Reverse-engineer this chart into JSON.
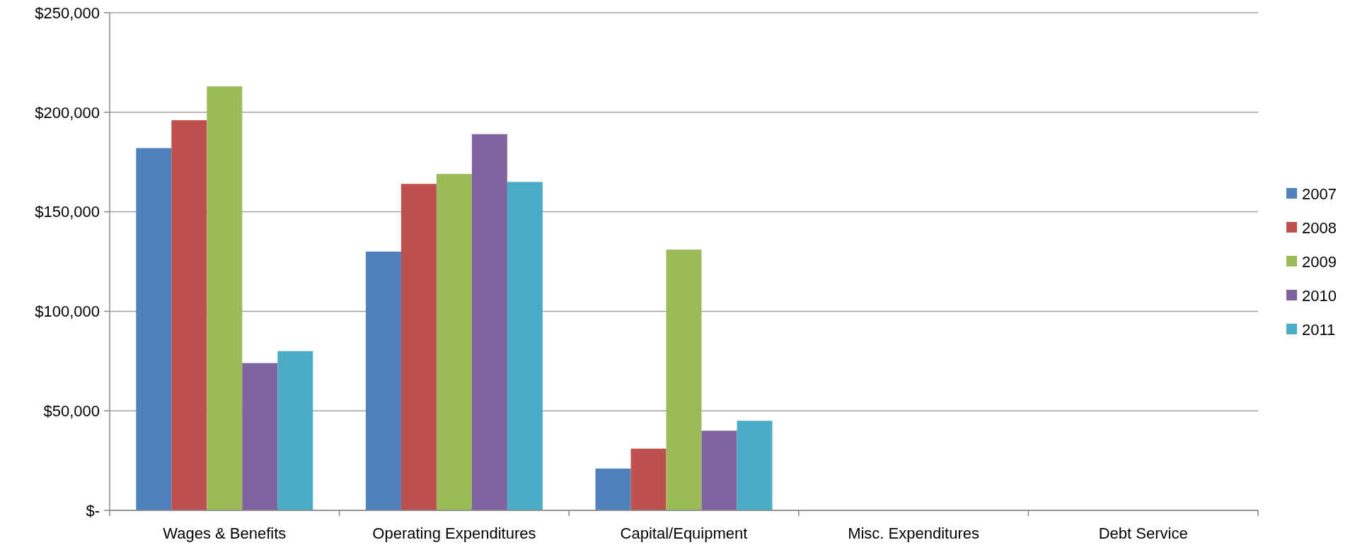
{
  "chart_data": {
    "type": "bar",
    "categories": [
      "Wages & Benefits",
      "Operating Expenditures",
      "Capital/Equipment",
      "Misc. Expenditures",
      "Debt Service"
    ],
    "series": [
      {
        "name": "2007",
        "color": "#4f81bd",
        "values": [
          182000,
          130000,
          21000,
          0,
          0
        ]
      },
      {
        "name": "2008",
        "color": "#c0504d",
        "values": [
          196000,
          164000,
          31000,
          0,
          0
        ]
      },
      {
        "name": "2009",
        "color": "#9bbb59",
        "values": [
          213000,
          169000,
          131000,
          0,
          0
        ]
      },
      {
        "name": "2010",
        "color": "#8064a2",
        "values": [
          74000,
          189000,
          40000,
          0,
          0
        ]
      },
      {
        "name": "2011",
        "color": "#4bacc6",
        "values": [
          80000,
          165000,
          45000,
          0,
          0
        ]
      }
    ],
    "ylim": [
      0,
      250000
    ],
    "yticks": [
      {
        "value": 0,
        "label": "$-"
      },
      {
        "value": 50000,
        "label": "$50,000"
      },
      {
        "value": 100000,
        "label": "$100,000"
      },
      {
        "value": 150000,
        "label": "$150,000"
      },
      {
        "value": 200000,
        "label": "$200,000"
      },
      {
        "value": 250000,
        "label": "$250,000"
      }
    ],
    "grid": "y",
    "legend": "right"
  }
}
